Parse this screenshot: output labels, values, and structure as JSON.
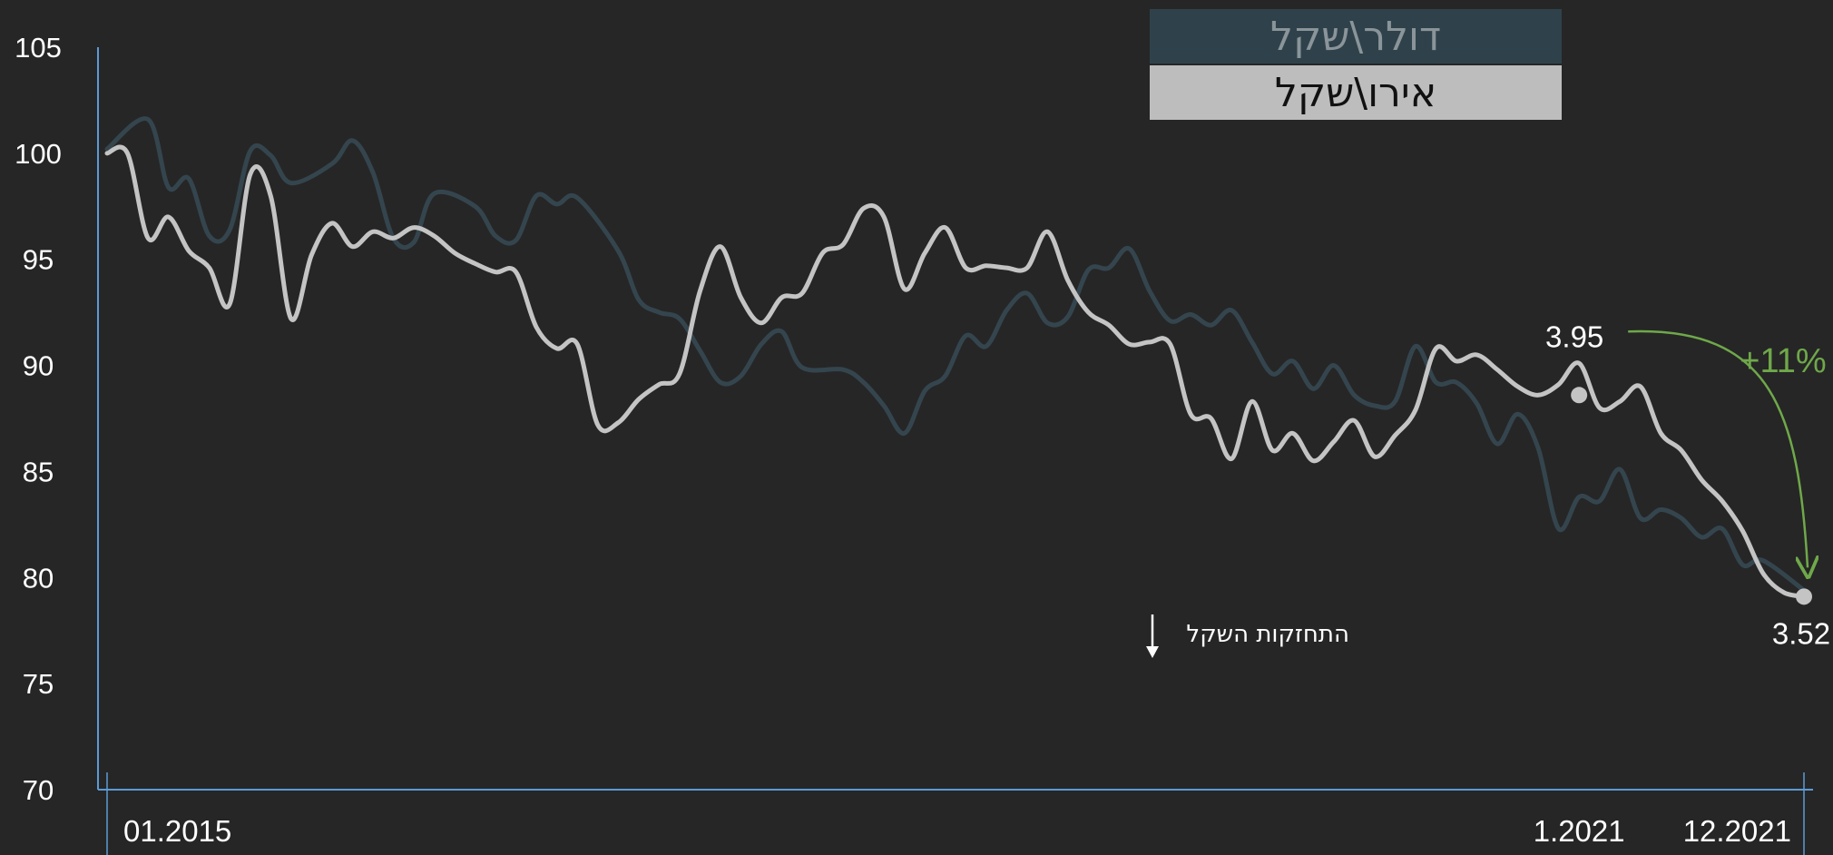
{
  "legend": {
    "usd_label": "דולר\\שקל",
    "eur_label": "אירו\\שקל"
  },
  "colors": {
    "background": "#262626",
    "axis": "#5b9bd5",
    "usd_line": "#34454e",
    "eur_line": "#c4c4c4",
    "annotation_green": "#6fa84a"
  },
  "annotations": {
    "start_value": "3.95",
    "end_value": "3.52",
    "change": "+11%",
    "strengthening": "התחזקות השקל"
  },
  "chart_data": {
    "type": "line",
    "ylim": [
      70,
      105
    ],
    "y_ticks": [
      "105",
      "100",
      "95",
      "90",
      "85",
      "80",
      "75",
      "70"
    ],
    "x_tick_labels": [
      "01.2015",
      "1.2021",
      "12.2021"
    ],
    "x_range": [
      "2015-01",
      "2021-12"
    ],
    "series": [
      {
        "name": "דולר\\שקל",
        "color": "#34454e",
        "points": [
          [
            "2015-01",
            100.2
          ],
          [
            "2015-03",
            101.6
          ],
          [
            "2015-04",
            98.4
          ],
          [
            "2015-05",
            98.8
          ],
          [
            "2015-06",
            96.1
          ],
          [
            "2015-07",
            96.4
          ],
          [
            "2015-08",
            100.1
          ],
          [
            "2015-09",
            99.9
          ],
          [
            "2015-10",
            98.6
          ],
          [
            "2015-12",
            99.5
          ],
          [
            "2016-01",
            100.6
          ],
          [
            "2016-02",
            99.1
          ],
          [
            "2016-03",
            96.0
          ],
          [
            "2016-04",
            95.8
          ],
          [
            "2016-05",
            98.1
          ],
          [
            "2016-07",
            97.5
          ],
          [
            "2016-08",
            96.1
          ],
          [
            "2016-09",
            95.9
          ],
          [
            "2016-10",
            98.0
          ],
          [
            "2016-11",
            97.6
          ],
          [
            "2016-12",
            97.9
          ],
          [
            "2017-02",
            95.4
          ],
          [
            "2017-03",
            93.1
          ],
          [
            "2017-04",
            92.5
          ],
          [
            "2017-05",
            92.2
          ],
          [
            "2017-06",
            90.7
          ],
          [
            "2017-07",
            89.2
          ],
          [
            "2017-08",
            89.5
          ],
          [
            "2017-09",
            91.0
          ],
          [
            "2017-10",
            91.6
          ],
          [
            "2017-11",
            89.9
          ],
          [
            "2018-01",
            89.8
          ],
          [
            "2018-02",
            89.2
          ],
          [
            "2018-03",
            88.1
          ],
          [
            "2018-04",
            86.8
          ],
          [
            "2018-05",
            88.8
          ],
          [
            "2018-06",
            89.5
          ],
          [
            "2018-07",
            91.4
          ],
          [
            "2018-08",
            90.9
          ],
          [
            "2018-09",
            92.6
          ],
          [
            "2018-10",
            93.4
          ],
          [
            "2018-11",
            92.0
          ],
          [
            "2018-12",
            92.3
          ],
          [
            "2019-01",
            94.5
          ],
          [
            "2019-02",
            94.6
          ],
          [
            "2019-03",
            95.5
          ],
          [
            "2019-04",
            93.5
          ],
          [
            "2019-05",
            92.1
          ],
          [
            "2019-06",
            92.4
          ],
          [
            "2019-07",
            91.9
          ],
          [
            "2019-08",
            92.6
          ],
          [
            "2019-09",
            91.1
          ],
          [
            "2019-10",
            89.6
          ],
          [
            "2019-11",
            90.2
          ],
          [
            "2019-12",
            88.9
          ],
          [
            "2020-01",
            90.0
          ],
          [
            "2020-02",
            88.6
          ],
          [
            "2020-03",
            88.1
          ],
          [
            "2020-04",
            88.3
          ],
          [
            "2020-05",
            90.9
          ],
          [
            "2020-06",
            89.2
          ],
          [
            "2020-07",
            89.2
          ],
          [
            "2020-08",
            88.2
          ],
          [
            "2020-09",
            86.3
          ],
          [
            "2020-10",
            87.7
          ],
          [
            "2020-11",
            86.1
          ],
          [
            "2020-12",
            82.3
          ],
          [
            "2021-01",
            83.8
          ],
          [
            "2021-02",
            83.6
          ],
          [
            "2021-03",
            85.1
          ],
          [
            "2021-04",
            82.8
          ],
          [
            "2021-05",
            83.2
          ],
          [
            "2021-06",
            82.8
          ],
          [
            "2021-07",
            81.9
          ],
          [
            "2021-08",
            82.3
          ],
          [
            "2021-09",
            80.6
          ],
          [
            "2021-10",
            80.8
          ],
          [
            "2021-12",
            79.4
          ]
        ]
      },
      {
        "name": "אירו\\שקל",
        "color": "#c4c4c4",
        "points": [
          [
            "2015-01",
            100.0
          ],
          [
            "2015-02",
            100.0
          ],
          [
            "2015-03",
            96.0
          ],
          [
            "2015-04",
            97.0
          ],
          [
            "2015-05",
            95.4
          ],
          [
            "2015-06",
            94.6
          ],
          [
            "2015-07",
            92.9
          ],
          [
            "2015-08",
            99.0
          ],
          [
            "2015-09",
            98.0
          ],
          [
            "2015-10",
            92.2
          ],
          [
            "2015-11",
            95.2
          ],
          [
            "2015-12",
            96.7
          ],
          [
            "2016-01",
            95.6
          ],
          [
            "2016-02",
            96.3
          ],
          [
            "2016-03",
            96.0
          ],
          [
            "2016-04",
            96.5
          ],
          [
            "2016-05",
            96.1
          ],
          [
            "2016-06",
            95.3
          ],
          [
            "2016-07",
            94.8
          ],
          [
            "2016-08",
            94.4
          ],
          [
            "2016-09",
            94.4
          ],
          [
            "2016-10",
            91.8
          ],
          [
            "2016-11",
            90.8
          ],
          [
            "2016-12",
            91.0
          ],
          [
            "2017-01",
            87.2
          ],
          [
            "2017-02",
            87.3
          ],
          [
            "2017-03",
            88.4
          ],
          [
            "2017-04",
            89.1
          ],
          [
            "2017-05",
            89.6
          ],
          [
            "2017-06",
            93.5
          ],
          [
            "2017-07",
            95.6
          ],
          [
            "2017-08",
            93.2
          ],
          [
            "2017-09",
            92.0
          ],
          [
            "2017-10",
            93.2
          ],
          [
            "2017-11",
            93.4
          ],
          [
            "2017-12",
            95.3
          ],
          [
            "2018-01",
            95.7
          ],
          [
            "2018-02",
            97.4
          ],
          [
            "2018-03",
            97.0
          ],
          [
            "2018-04",
            93.6
          ],
          [
            "2018-05",
            95.3
          ],
          [
            "2018-06",
            96.5
          ],
          [
            "2018-07",
            94.6
          ],
          [
            "2018-08",
            94.7
          ],
          [
            "2018-09",
            94.6
          ],
          [
            "2018-10",
            94.6
          ],
          [
            "2018-11",
            96.3
          ],
          [
            "2018-12",
            94.0
          ],
          [
            "2019-01",
            92.5
          ],
          [
            "2019-02",
            91.9
          ],
          [
            "2019-03",
            91.0
          ],
          [
            "2019-04",
            91.1
          ],
          [
            "2019-05",
            91.0
          ],
          [
            "2019-06",
            87.7
          ],
          [
            "2019-07",
            87.5
          ],
          [
            "2019-08",
            85.6
          ],
          [
            "2019-09",
            88.3
          ],
          [
            "2019-10",
            86.0
          ],
          [
            "2019-11",
            86.8
          ],
          [
            "2019-12",
            85.5
          ],
          [
            "2020-01",
            86.4
          ],
          [
            "2020-02",
            87.4
          ],
          [
            "2020-03",
            85.7
          ],
          [
            "2020-04",
            86.7
          ],
          [
            "2020-05",
            87.9
          ],
          [
            "2020-06",
            90.8
          ],
          [
            "2020-07",
            90.2
          ],
          [
            "2020-08",
            90.5
          ],
          [
            "2020-09",
            89.8
          ],
          [
            "2020-10",
            89.0
          ],
          [
            "2020-11",
            88.6
          ],
          [
            "2020-12",
            89.1
          ],
          [
            "2021-01",
            90.1
          ],
          [
            "2021-02",
            88.0
          ],
          [
            "2021-03",
            88.3
          ],
          [
            "2021-04",
            89.0
          ],
          [
            "2021-05",
            86.8
          ],
          [
            "2021-06",
            86.0
          ],
          [
            "2021-07",
            84.6
          ],
          [
            "2021-08",
            83.6
          ],
          [
            "2021-09",
            82.2
          ],
          [
            "2021-10",
            80.2
          ],
          [
            "2021-11",
            79.3
          ],
          [
            "2021-12",
            79.1
          ]
        ]
      }
    ],
    "markers": [
      {
        "x": "2021-01",
        "y": 88.6,
        "label": "3.95"
      },
      {
        "x": "2021-12",
        "y": 79.1,
        "label": "3.52"
      }
    ]
  }
}
